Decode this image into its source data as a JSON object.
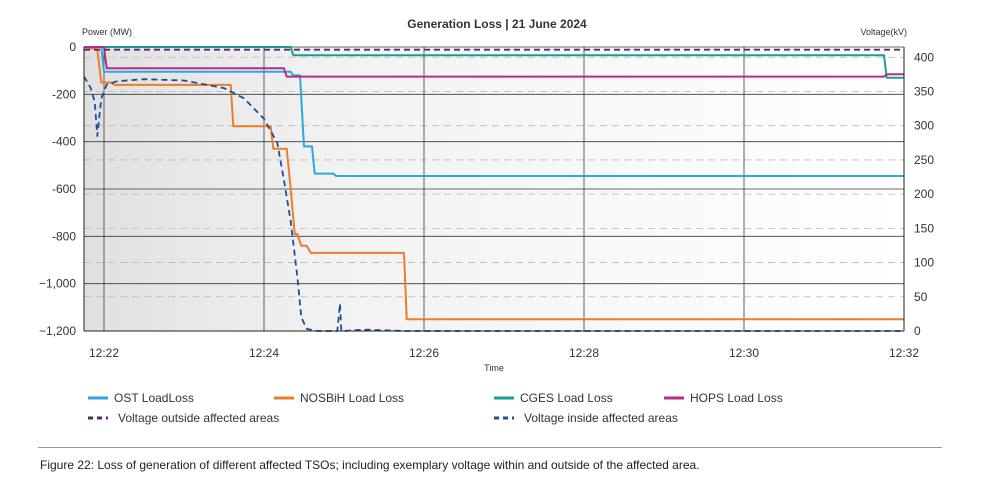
{
  "chart_data": {
    "type": "line",
    "title": "Generation Loss  |  21 June 2024",
    "xlabel": "Time",
    "ylabel_left": "Power (MW)",
    "ylabel_right": "Voltage(kV)",
    "x_ticks": [
      "12:22",
      "12:24",
      "12:26",
      "12:28",
      "12:30",
      "12:32"
    ],
    "y_left_ticks": [
      "0",
      "-200",
      "-400",
      "-600",
      "-800",
      "−1,000",
      "−1,200"
    ],
    "y_right_ticks": [
      "400",
      "350",
      "300",
      "250",
      "200",
      "150",
      "100",
      "50",
      "0"
    ],
    "xlim": [
      "12:21:45",
      "12:32:00"
    ],
    "ylim_left": [
      -1200,
      0
    ],
    "ylim_right": [
      0,
      415
    ],
    "grid": true,
    "legend_position": "bottom",
    "series": [
      {
        "name": "OST LoadLoss",
        "axis": "left",
        "color": "#2da8de",
        "style": "solid",
        "x": [
          "12:21:45",
          "12:21:58",
          "12:22:00",
          "12:24:20",
          "12:24:22",
          "12:24:27",
          "12:24:30",
          "12:24:36",
          "12:24:38",
          "12:24:52",
          "12:24:54",
          "12:32:00"
        ],
        "y": [
          0,
          0,
          -105,
          -105,
          -120,
          -120,
          -420,
          -420,
          -535,
          -535,
          -545,
          -545
        ]
      },
      {
        "name": "NOSBiH Load Loss",
        "axis": "left",
        "color": "#ed7c2b",
        "style": "solid",
        "x": [
          "12:21:45",
          "12:21:55",
          "12:21:58",
          "12:22:05",
          "12:22:08",
          "12:23:35",
          "12:23:37",
          "12:24:05",
          "12:24:07",
          "12:24:17",
          "12:24:20",
          "12:24:23",
          "12:24:25",
          "12:24:28",
          "12:24:32",
          "12:24:35",
          "12:25:45",
          "12:25:47",
          "12:32:00"
        ],
        "y": [
          0,
          -10,
          -150,
          -150,
          -160,
          -160,
          -335,
          -335,
          -430,
          -430,
          -600,
          -790,
          -790,
          -840,
          -840,
          -870,
          -870,
          -1150,
          -1150
        ]
      },
      {
        "name": "CGES Load Loss",
        "axis": "left",
        "color": "#1a9e96",
        "style": "solid",
        "x": [
          "12:21:45",
          "12:24:20",
          "12:24:22",
          "12:31:45",
          "12:31:47",
          "12:32:00"
        ],
        "y": [
          0,
          0,
          -35,
          -35,
          -130,
          -130
        ]
      },
      {
        "name": "HOPS Load Loss",
        "axis": "left",
        "color": "#b52d8b",
        "style": "solid",
        "x": [
          "12:21:45",
          "12:22:00",
          "12:22:02",
          "12:24:15",
          "12:24:17",
          "12:31:45",
          "12:31:47",
          "12:32:00"
        ],
        "y": [
          0,
          0,
          -90,
          -90,
          -125,
          -125,
          -115,
          -115
        ]
      },
      {
        "name": "Voltage outside affected areas",
        "axis": "right",
        "color": "#5b2a66",
        "style": "dashed",
        "x": [
          "12:21:45",
          "12:22:00",
          "12:24:00",
          "12:26:00",
          "12:28:00",
          "12:30:00",
          "12:32:00"
        ],
        "y": [
          411,
          411,
          411,
          411,
          411,
          411,
          411
        ]
      },
      {
        "name": "Voltage inside affected areas",
        "axis": "right",
        "color": "#1f4e9c",
        "style": "dashed",
        "x": [
          "12:21:45",
          "12:21:50",
          "12:21:53",
          "12:21:55",
          "12:21:58",
          "12:22:02",
          "12:22:10",
          "12:22:30",
          "12:23:00",
          "12:23:30",
          "12:23:45",
          "12:24:00",
          "12:24:10",
          "12:24:15",
          "12:24:20",
          "12:24:25",
          "12:24:28",
          "12:24:32",
          "12:24:40",
          "12:24:55",
          "12:24:57",
          "12:24:58",
          "12:25:00",
          "12:25:15",
          "12:25:45",
          "12:26:00",
          "12:28:00",
          "12:30:00",
          "12:32:00"
        ],
        "y": [
          372,
          355,
          335,
          285,
          340,
          360,
          365,
          368,
          366,
          355,
          340,
          310,
          275,
          220,
          160,
          80,
          20,
          3,
          0,
          0,
          40,
          0,
          0,
          2,
          0,
          0,
          0,
          0,
          0
        ]
      }
    ]
  },
  "legend_items": [
    "OST LoadLoss",
    "NOSBiH Load Loss",
    "CGES Load Loss",
    "HOPS Load Loss",
    "Voltage outside affected areas",
    "Voltage inside affected areas"
  ],
  "caption": "Figure 22:  Loss of generation of different affected TSOs; including exemplary voltage within and outside of the affected area."
}
